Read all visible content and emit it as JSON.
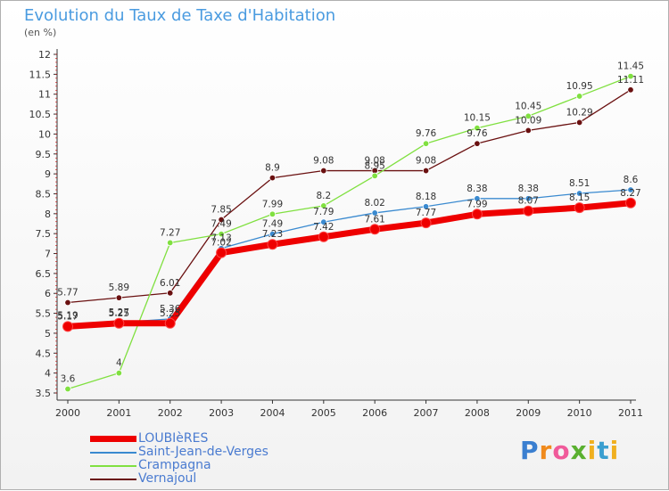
{
  "title": "Evolution du Taux de Taxe d'Habitation",
  "subtitle": "(en %)",
  "logo_text": "Proxiti",
  "colors": {
    "title": "#4a9be0",
    "axis": "#333333",
    "grid_tick": "#cc0000"
  },
  "chart_data": {
    "type": "line",
    "title": "Evolution du Taux de Taxe d'Habitation",
    "subtitle": "(en %)",
    "xlabel": "",
    "ylabel": "",
    "categories": [
      "2000",
      "2001",
      "2002",
      "2003",
      "2004",
      "2005",
      "2006",
      "2007",
      "2008",
      "2009",
      "2010",
      "2011"
    ],
    "ylim": [
      3.5,
      12
    ],
    "yticks": [
      "3.5",
      "4",
      "4.5",
      "5",
      "5.5",
      "6",
      "6.5",
      "7",
      "7.5",
      "8",
      "8.5",
      "9",
      "9.5",
      "10",
      "10.5",
      "11",
      "11.5",
      "12"
    ],
    "grid": false,
    "legend_position": "bottom-left",
    "series": [
      {
        "name": "LOUBIèRES",
        "color": "#ee0000",
        "values": [
          5.17,
          5.25,
          5.25,
          7.02,
          7.23,
          7.42,
          7.61,
          7.77,
          7.99,
          8.07,
          8.15,
          8.27
        ],
        "labels": [
          "5.17",
          "5.25",
          "5.25",
          "7.02",
          "7.23",
          "7.42",
          "7.61",
          "7.77",
          "7.99",
          "8.07",
          "8.15",
          "8.27"
        ]
      },
      {
        "name": "Saint-Jean-de-Verges",
        "color": "#3a8ad0",
        "values": [
          5.19,
          5.27,
          5.36,
          7.13,
          7.49,
          7.79,
          8.02,
          8.18,
          8.38,
          8.38,
          8.51,
          8.6
        ],
        "labels": [
          "5.19",
          "5.27",
          "5.36",
          "7.13",
          "7.49",
          "7.79",
          "8.02",
          "8.18",
          "8.38",
          "8.38",
          "8.51",
          "8.6"
        ]
      },
      {
        "name": "Crampagna",
        "color": "#80e040",
        "values": [
          3.6,
          4,
          7.27,
          7.49,
          7.99,
          8.2,
          8.95,
          9.76,
          10.15,
          10.45,
          10.95,
          11.45
        ],
        "labels": [
          "3.6",
          "4",
          "7.27",
          "7.49",
          "7.99",
          "8.2",
          "8.95",
          "9.76",
          "10.15",
          "10.45",
          "10.95",
          "11.45"
        ]
      },
      {
        "name": "Vernajoul",
        "color": "#6a1010",
        "values": [
          5.77,
          5.89,
          6.01,
          7.85,
          8.9,
          9.08,
          9.08,
          9.08,
          9.76,
          10.09,
          10.29,
          11.11
        ],
        "labels": [
          "5.77",
          "5.89",
          "6.01",
          "7.85",
          "8.9",
          "9.08",
          "9.08",
          "9.08",
          "9.76",
          "10.09",
          "10.29",
          "11.11"
        ]
      }
    ]
  }
}
